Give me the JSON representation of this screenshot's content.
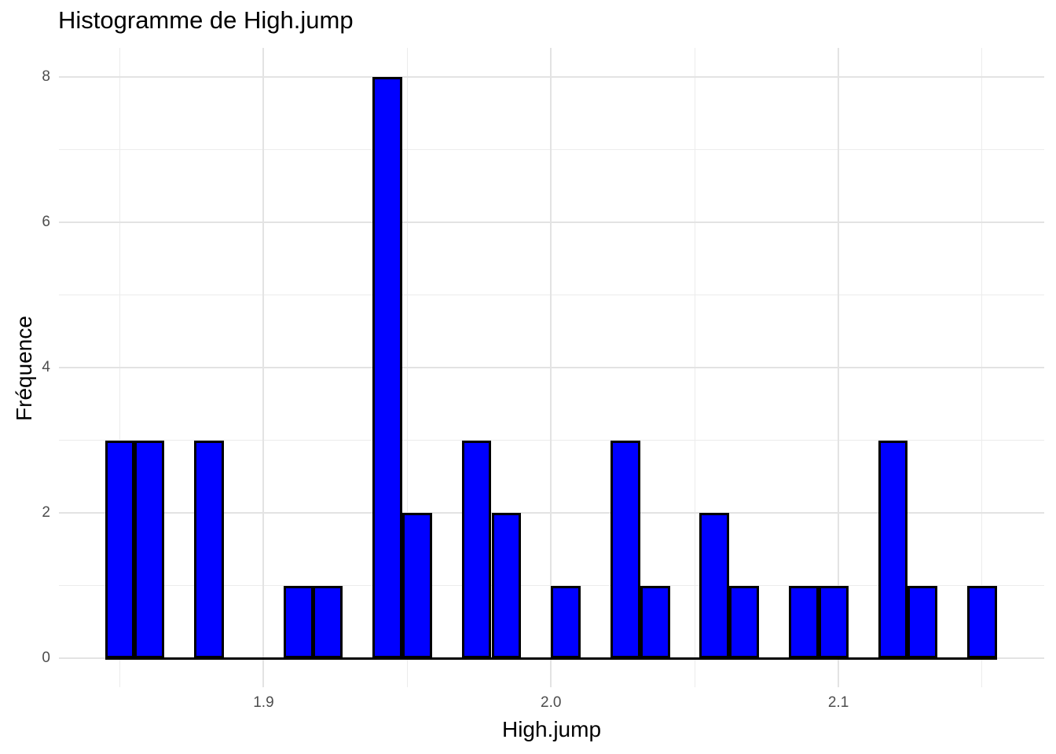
{
  "chart_data": {
    "type": "bar",
    "subtype": "histogram",
    "title": "Histogramme de High.jump",
    "xlabel": "High.jump",
    "ylabel": "Fréquence",
    "bin_width": 0.0103448,
    "bin_centers": [
      1.85,
      1.8603,
      1.8707,
      1.881,
      1.8914,
      1.9017,
      1.9121,
      1.9224,
      1.9328,
      1.9431,
      1.9534,
      1.9638,
      1.9741,
      1.9845,
      1.9948,
      2.0052,
      2.0155,
      2.0259,
      2.0362,
      2.0466,
      2.0569,
      2.0672,
      2.0776,
      2.0879,
      2.0983,
      2.1086,
      2.119,
      2.1293,
      2.1397,
      2.15
    ],
    "values": [
      3,
      3,
      0,
      3,
      0,
      0,
      1,
      1,
      0,
      8,
      2,
      0,
      3,
      2,
      0,
      1,
      0,
      3,
      1,
      0,
      2,
      1,
      0,
      1,
      1,
      0,
      3,
      1,
      0,
      1
    ],
    "total_count": 41,
    "x_major_ticks": [
      1.9,
      2.0,
      2.1
    ],
    "x_tick_labels": [
      "1.9",
      "2.0",
      "2.1"
    ],
    "x_minor_ticks": [
      1.85,
      1.95,
      2.05,
      2.15
    ],
    "y_major_ticks": [
      0,
      2,
      4,
      6,
      8
    ],
    "y_tick_labels": [
      "0",
      "2",
      "4",
      "6",
      "8"
    ],
    "y_minor_ticks": [
      1,
      3,
      5,
      7
    ],
    "xlim": [
      1.8288,
      2.1716
    ],
    "ylim": [
      -0.4,
      8.4
    ],
    "grid": true,
    "legend": "none",
    "colors": {
      "bar_fill": "#0000FF",
      "bar_stroke": "#000000",
      "grid_major": "#e3e3e3",
      "grid_minor": "#ececec",
      "tick_label": "#4d4d4d",
      "title": "#000000",
      "background": "#ffffff"
    }
  }
}
